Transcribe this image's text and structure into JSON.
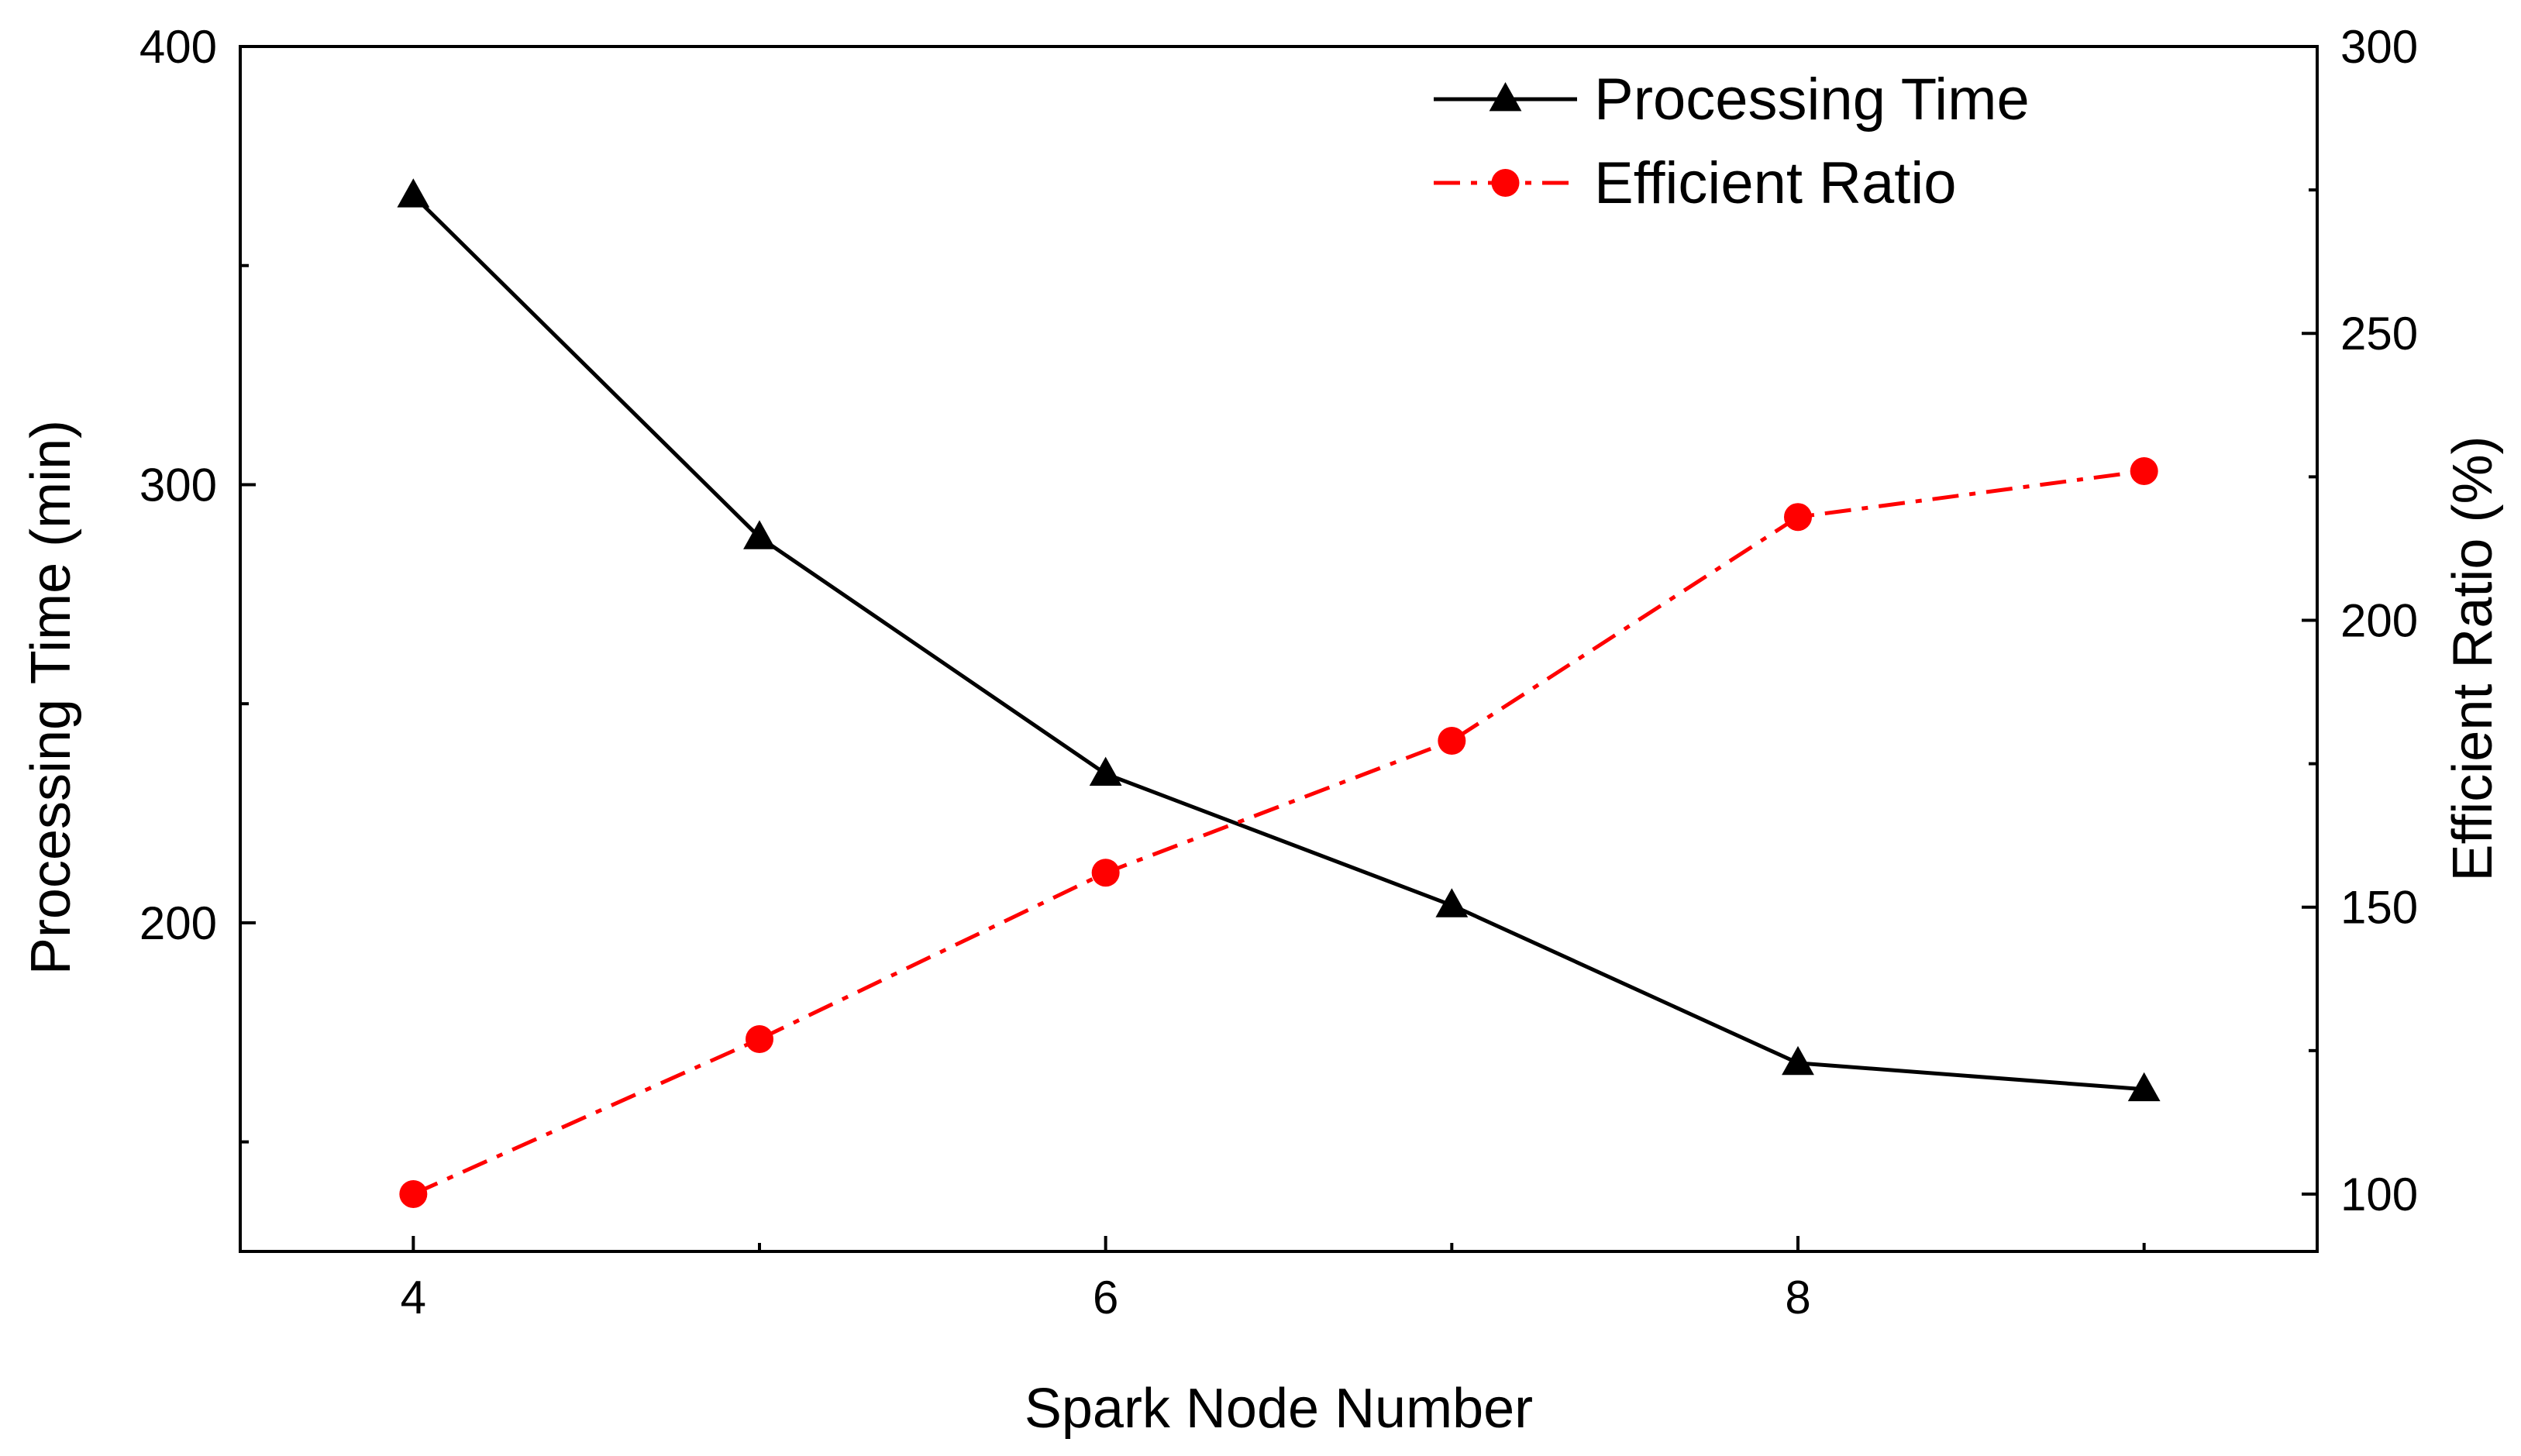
{
  "chart_data": {
    "type": "line",
    "xlabel": "Spark Node Number",
    "ylabel_left": "Processing Time (min)",
    "ylabel_right": "Efficient Ratio (%)",
    "x": [
      4,
      5,
      6,
      7,
      8,
      9
    ],
    "x_ticks": [
      4,
      6,
      8
    ],
    "x_tick_labels": [
      "4",
      "6",
      "8"
    ],
    "xlim": [
      3.5,
      9.5
    ],
    "ylim_left": [
      125,
      400
    ],
    "y_left_ticks": [
      200,
      300,
      400
    ],
    "y_left_tick_labels": [
      "200",
      "300",
      "400"
    ],
    "ylim_right": [
      90,
      300
    ],
    "y_right_ticks": [
      100,
      150,
      200,
      250,
      300
    ],
    "y_right_tick_labels": [
      "100",
      "150",
      "200",
      "250",
      "300"
    ],
    "legend_position": "top-right",
    "series": [
      {
        "name": "Processing Time",
        "axis": "left",
        "values": [
          366,
          288,
          234,
          204,
          168,
          162
        ],
        "color": "#000000",
        "line_style": "solid",
        "marker": "triangle"
      },
      {
        "name": "Efficient Ratio",
        "axis": "right",
        "values": [
          100,
          127,
          156,
          179,
          218,
          226
        ],
        "color": "#ff0000",
        "line_style": "dash-dot",
        "marker": "circle"
      }
    ]
  }
}
